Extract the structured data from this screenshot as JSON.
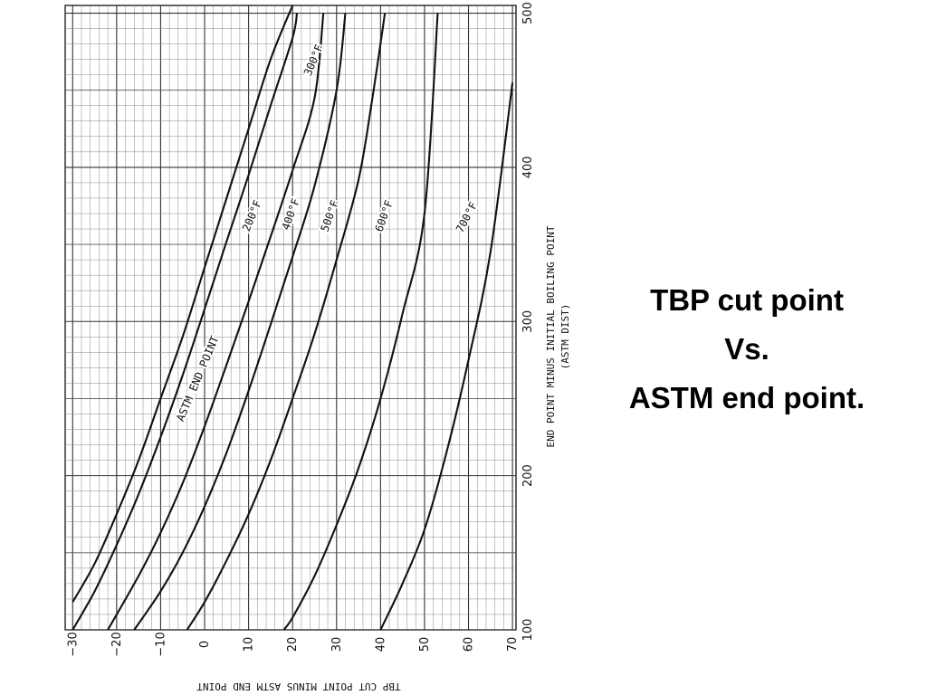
{
  "slide": {
    "title_lines": [
      "TBP cut point",
      "Vs.",
      "ASTM end point."
    ]
  },
  "chart_data": {
    "type": "line",
    "xlabel": "TBP CUT POINT MINUS ASTM END POINT",
    "ylabel": "END POINT MINUS INITIAL BOILING POINT",
    "ylabel2": "(ASTM DIST)",
    "xlim": [
      -30,
      70
    ],
    "ylim": [
      100,
      500
    ],
    "x_ticks": [
      -30,
      -20,
      -10,
      0,
      10,
      20,
      30,
      40,
      50,
      60,
      70
    ],
    "y_ticks": [
      100,
      200,
      300,
      400,
      500
    ],
    "grid": true,
    "series": [
      {
        "name": "ASTM END POINT",
        "x": [
          -30,
          -25,
          -20,
          -15,
          -10,
          -5,
          0,
          5,
          10,
          15,
          20
        ],
        "y": [
          118,
          143,
          175,
          210,
          250,
          290,
          335,
          380,
          425,
          470,
          505
        ]
      },
      {
        "name": "200°F",
        "x": [
          -30,
          -25,
          -20,
          -15,
          -10,
          -5,
          0,
          5,
          10,
          15,
          20,
          21
        ],
        "y": [
          100,
          125,
          155,
          188,
          225,
          265,
          308,
          352,
          395,
          440,
          484,
          500
        ]
      },
      {
        "name": "300°F",
        "x": [
          -22,
          -15,
          -10,
          -5,
          0,
          5,
          10,
          15,
          20,
          25,
          27
        ],
        "y": [
          100,
          135,
          163,
          195,
          232,
          272,
          313,
          355,
          398,
          445,
          500
        ]
      },
      {
        "name": "400°F",
        "x": [
          -16,
          -10,
          -5,
          0,
          5,
          10,
          15,
          20,
          25,
          30,
          32
        ],
        "y": [
          100,
          125,
          150,
          180,
          215,
          255,
          298,
          342,
          388,
          450,
          500
        ]
      },
      {
        "name": "500°F",
        "x": [
          -4,
          0,
          5,
          10,
          15,
          20,
          25,
          30,
          35,
          38,
          41
        ],
        "y": [
          100,
          118,
          145,
          175,
          210,
          250,
          292,
          340,
          392,
          442,
          500
        ]
      },
      {
        "name": "600°F",
        "x": [
          18,
          20,
          25,
          30,
          35,
          40,
          45,
          50,
          53
        ],
        "y": [
          100,
          108,
          135,
          168,
          205,
          250,
          305,
          370,
          500
        ]
      },
      {
        "name": "700°F",
        "x": [
          40,
          45,
          50,
          55,
          60,
          65,
          70
        ],
        "y": [
          100,
          130,
          165,
          215,
          275,
          345,
          455
        ]
      }
    ],
    "annotations": [
      "ASTM END POINT",
      "200°F",
      "300°F",
      "400°F",
      "500°F",
      "600°F",
      "700°F"
    ]
  }
}
